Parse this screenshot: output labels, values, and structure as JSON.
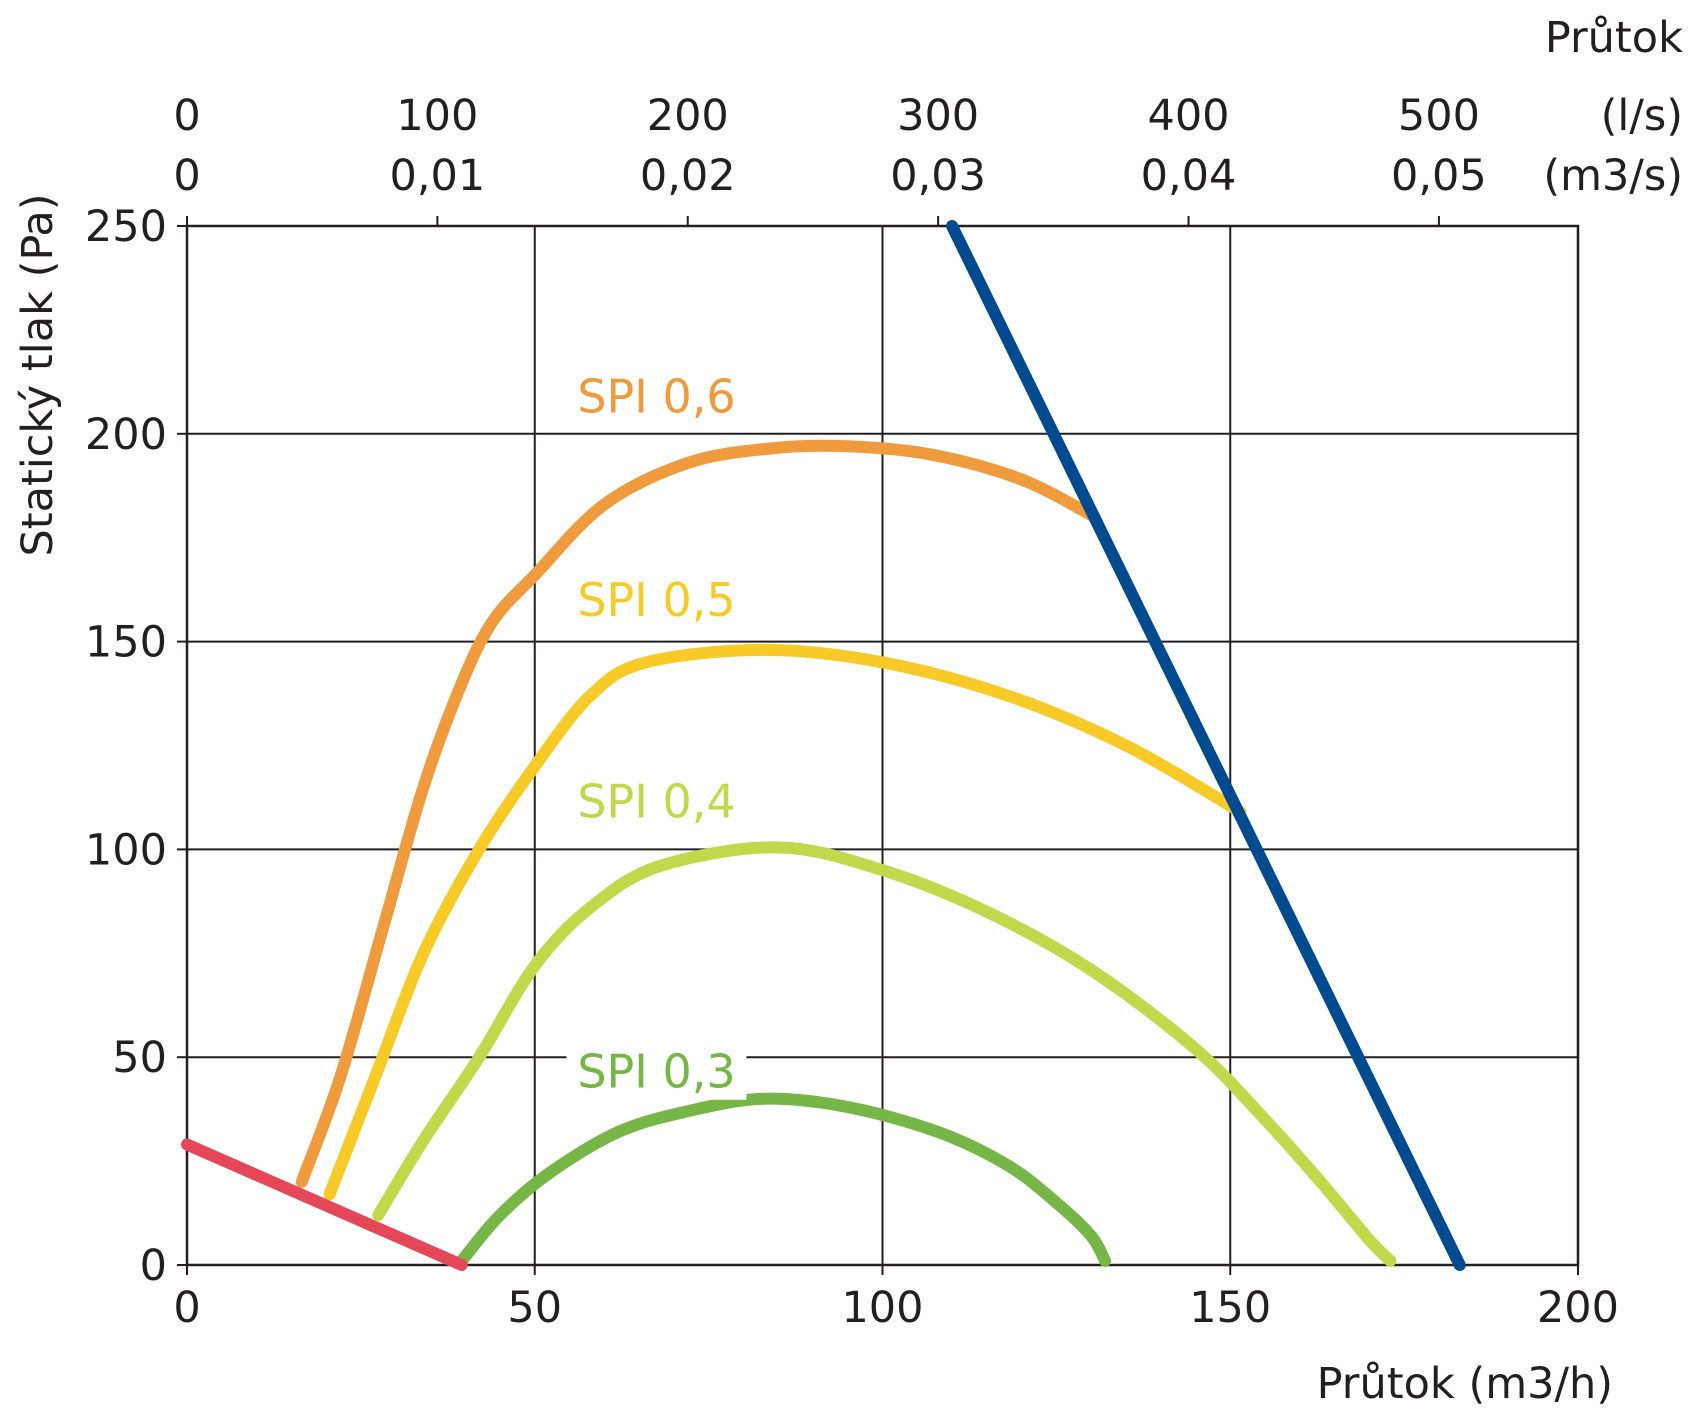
{
  "chart_data": {
    "type": "line",
    "xlabel": "Průtok (m3/h)",
    "ylabel": "Statický tlak (Pa)",
    "top_axis_title": "Průtok",
    "xlim": [
      0,
      200
    ],
    "ylim": [
      0,
      250
    ],
    "x_ticks": [
      "0",
      "50",
      "100",
      "150",
      "200"
    ],
    "y_ticks": [
      "0",
      "50",
      "100",
      "150",
      "200",
      "250"
    ],
    "top_ticks_ls": [
      "0",
      "100",
      "200",
      "300",
      "400",
      "500"
    ],
    "top_unit_ls": "(l/s)",
    "top_ticks_m3s": [
      "0",
      "0,01",
      "0,02",
      "0,03",
      "0,04",
      "0,05"
    ],
    "top_unit_m3s": "(m3/s)",
    "grid": true,
    "series": [
      {
        "name": "SPI 0,6",
        "color": "#ef9a3c",
        "label_pos": [
          67.5,
          209
        ],
        "points": [
          [
            16.5,
            20
          ],
          [
            22,
            45
          ],
          [
            28,
            80
          ],
          [
            34,
            115
          ],
          [
            39.5,
            140
          ],
          [
            44,
            155
          ],
          [
            50,
            166
          ],
          [
            60,
            183
          ],
          [
            72,
            193
          ],
          [
            84,
            196.5
          ],
          [
            95,
            197
          ],
          [
            107,
            195
          ],
          [
            120,
            189
          ],
          [
            130.5,
            180
          ]
        ]
      },
      {
        "name": "SPI 0,5",
        "color": "#f7ca27",
        "label_pos": [
          67.5,
          160
        ],
        "points": [
          [
            20.5,
            17
          ],
          [
            27,
            45
          ],
          [
            34,
            75
          ],
          [
            42,
            100
          ],
          [
            50,
            120
          ],
          [
            58,
            137
          ],
          [
            66,
            145
          ],
          [
            83,
            148
          ],
          [
            100,
            145
          ],
          [
            118,
            137
          ],
          [
            135,
            125
          ],
          [
            151.5,
            109
          ]
        ]
      },
      {
        "name": "SPI 0,4",
        "color": "#c1d84a",
        "label_pos": [
          67.5,
          111.5
        ],
        "points": [
          [
            27.5,
            12
          ],
          [
            34,
            30
          ],
          [
            42,
            50
          ],
          [
            50,
            72
          ],
          [
            58,
            86
          ],
          [
            68,
            96
          ],
          [
            85,
            100.5
          ],
          [
            100,
            95
          ],
          [
            115,
            85
          ],
          [
            130,
            71
          ],
          [
            145,
            52
          ],
          [
            155,
            35
          ],
          [
            163,
            20
          ],
          [
            170,
            6
          ],
          [
            173,
            1
          ]
        ]
      },
      {
        "name": "SPI 0,3",
        "color": "#75b646",
        "label_pos": [
          67.5,
          46.5
        ],
        "points": [
          [
            39.5,
            1
          ],
          [
            45,
            12
          ],
          [
            52,
            22
          ],
          [
            62,
            32
          ],
          [
            72,
            37
          ],
          [
            83,
            40
          ],
          [
            95,
            38
          ],
          [
            108,
            32
          ],
          [
            118,
            24
          ],
          [
            125,
            15
          ],
          [
            130,
            7
          ],
          [
            132,
            1
          ]
        ]
      },
      {
        "color": "#004a8f",
        "points": [
          [
            110,
            250
          ],
          [
            183,
            0
          ]
        ]
      },
      {
        "color": "#e54758",
        "points": [
          [
            0,
            29
          ],
          [
            39.5,
            0
          ]
        ]
      }
    ]
  }
}
